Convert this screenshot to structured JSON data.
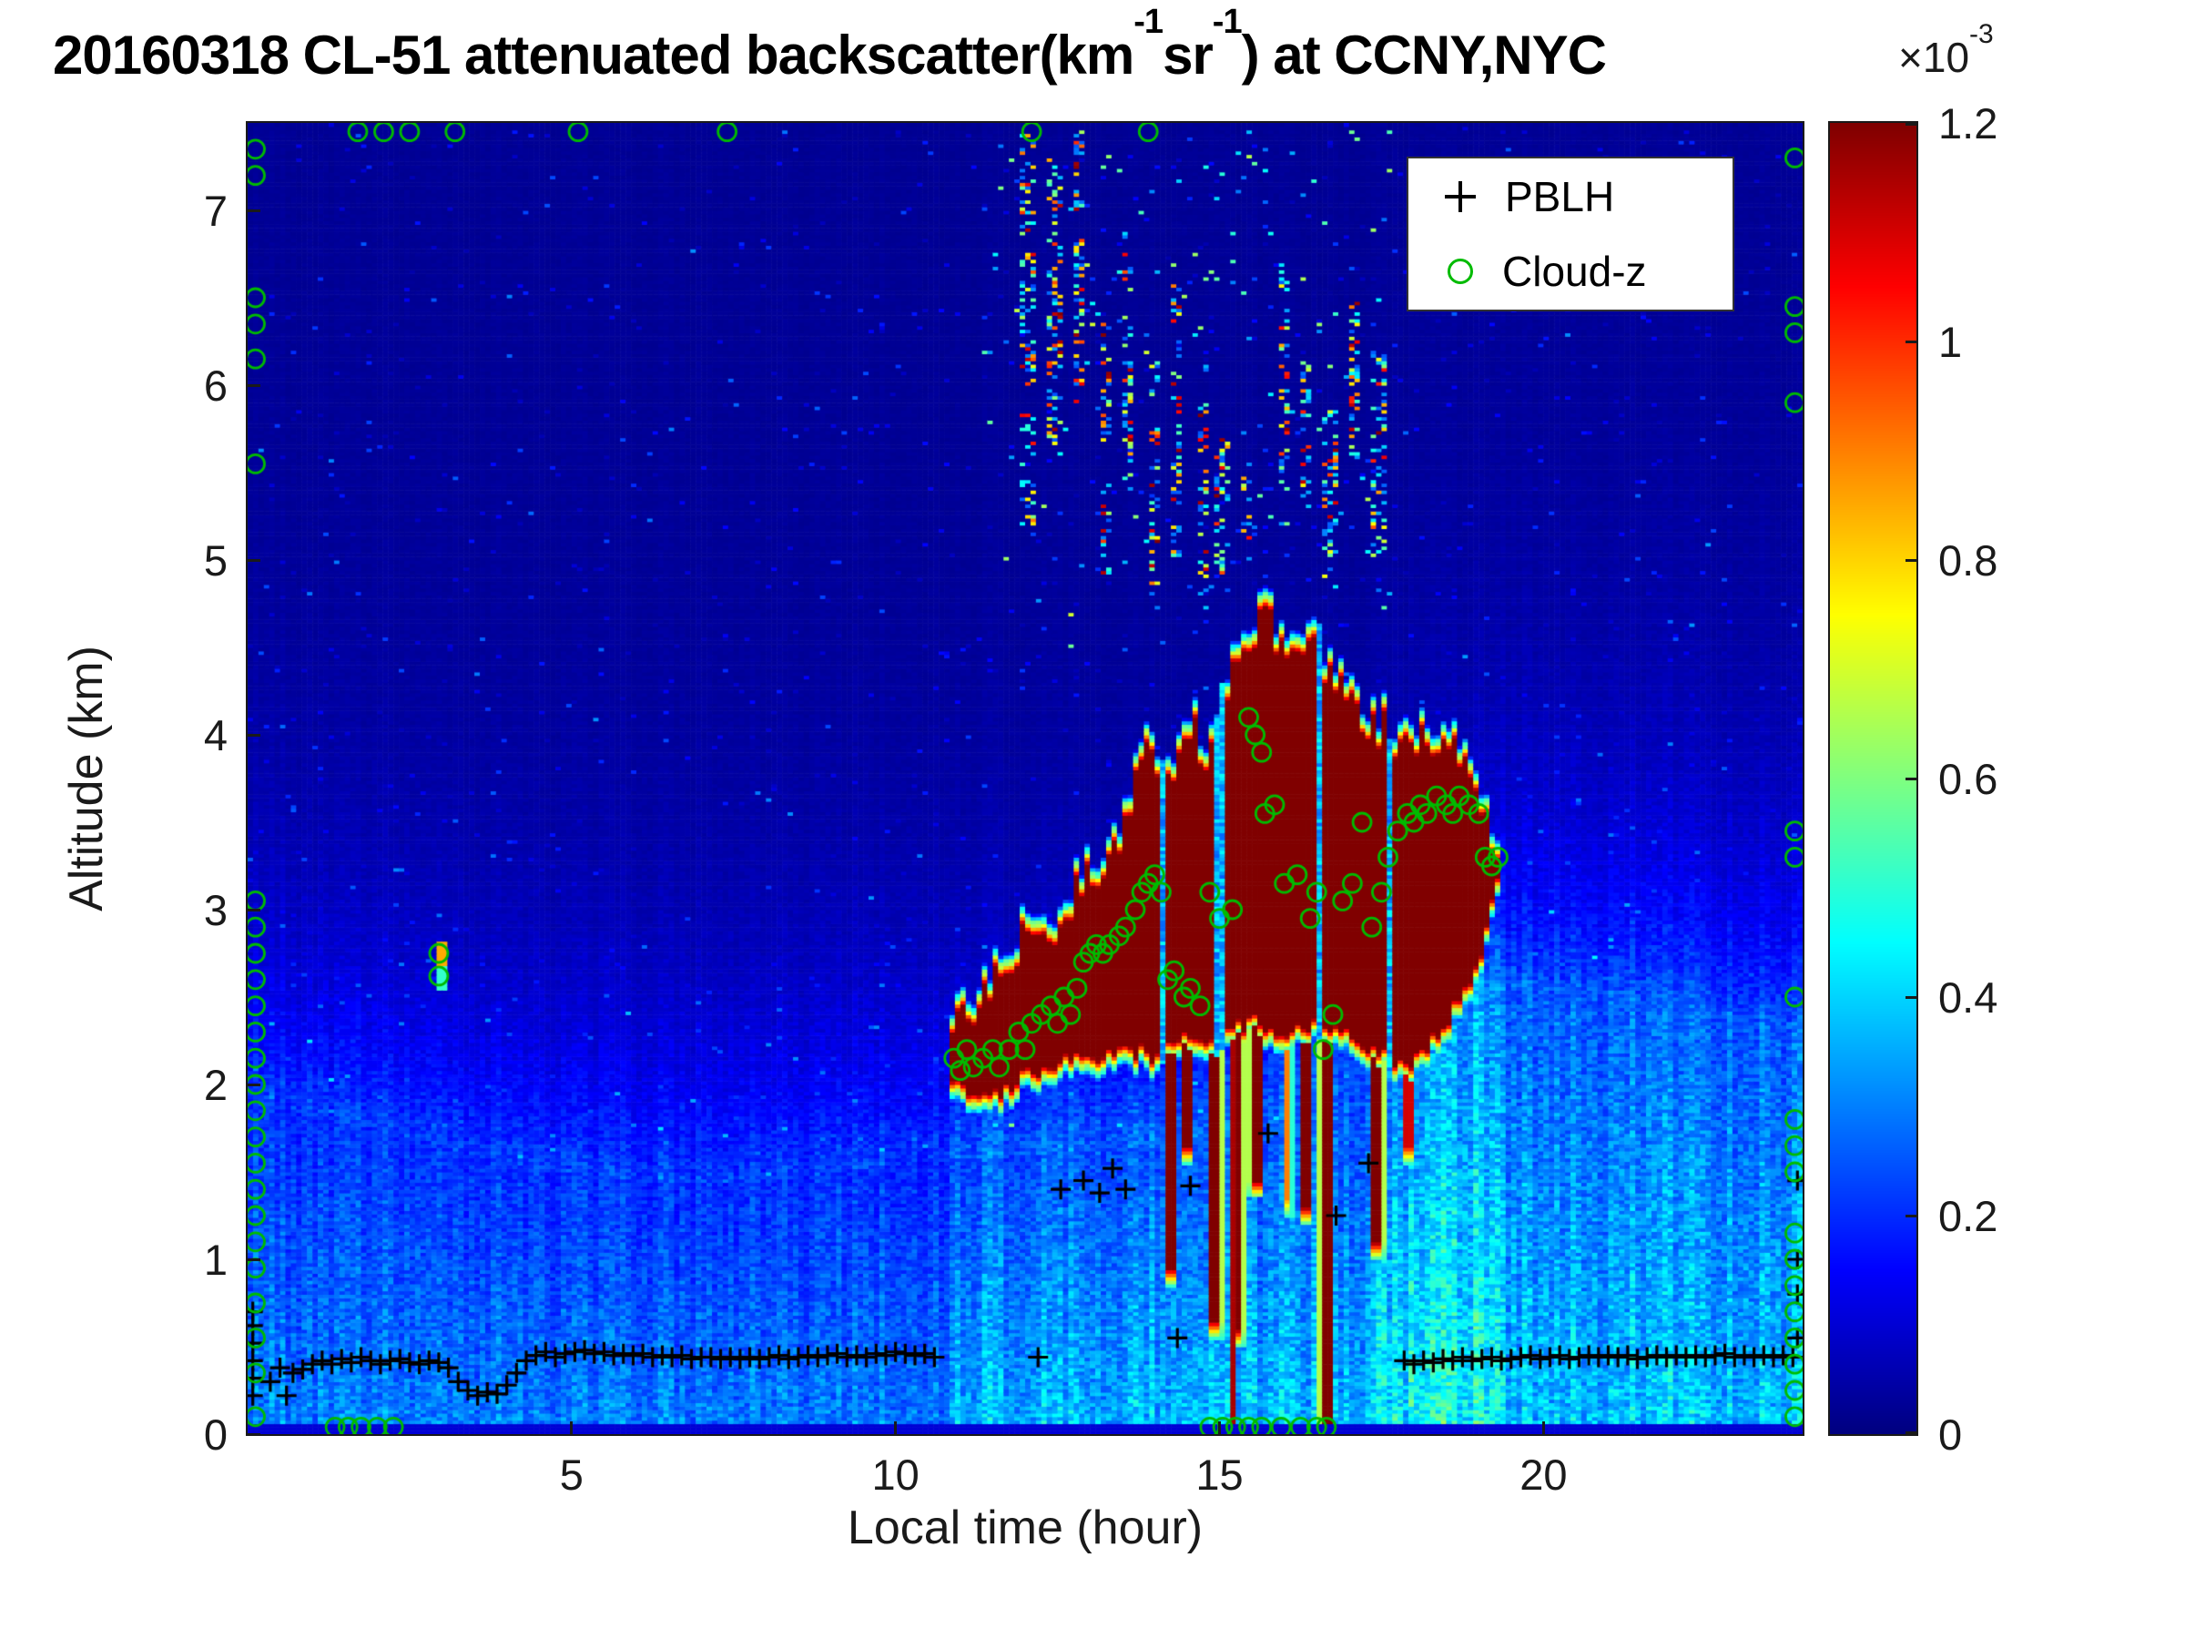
{
  "figure": {
    "background": "#ffffff"
  },
  "chart_data": {
    "type": "heatmap",
    "title_parts": {
      "prefix": "20160318  CL-51 attenuated backscatter(km",
      "sup1": "-1",
      "mid": "sr",
      "sup2": "-1",
      "suffix": ") at CCNY,NYC"
    },
    "xlabel": "Local time (hour)",
    "ylabel": "Altitude (km)",
    "xlim": [
      0,
      24
    ],
    "ylim": [
      0,
      7.5
    ],
    "xticks": [
      5,
      10,
      15,
      20
    ],
    "yticks": [
      0,
      1,
      2,
      3,
      4,
      5,
      6,
      7
    ],
    "colorbar": {
      "ticks": [
        0,
        0.2,
        0.4,
        0.6,
        0.8,
        1,
        1.2
      ],
      "vmin": 0,
      "vmax": 1.2,
      "multiplier_prefix": "×10",
      "multiplier_exp": "-3",
      "colormap": "jet"
    },
    "legend": [
      {
        "marker": "plus",
        "color": "#000000",
        "label": "PBLH"
      },
      {
        "marker": "circle",
        "color": "#00bb00",
        "label": "Cloud-z"
      }
    ],
    "heatmap_model": {
      "grid": {
        "nx": 288,
        "ny": 375
      },
      "boundary_layer": {
        "heights_by_hour": [
          [
            0,
            1.9
          ],
          [
            2,
            1.75
          ],
          [
            4,
            1.55
          ],
          [
            6,
            1.45
          ],
          [
            8,
            1.45
          ],
          [
            10,
            1.55
          ],
          [
            12,
            1.6
          ],
          [
            14,
            1.65
          ],
          [
            16,
            1.8
          ],
          [
            17,
            2.0
          ],
          [
            18,
            2.35
          ],
          [
            19,
            2.6
          ],
          [
            20,
            2.6
          ],
          [
            22,
            2.5
          ],
          [
            24,
            2.35
          ]
        ],
        "surface_value": 0.3,
        "top_value": 0.2,
        "decay_km": 0.9,
        "upper_floor": 0.025,
        "evening_boost": 1.3
      },
      "cloud": {
        "start": 10.85,
        "end": 19.35,
        "value": 1.2,
        "top_by_hour": [
          [
            10.85,
            2.35
          ],
          [
            11.2,
            2.5
          ],
          [
            11.6,
            2.65
          ],
          [
            12.0,
            2.9
          ],
          [
            12.4,
            2.85
          ],
          [
            12.8,
            3.15
          ],
          [
            13.2,
            3.35
          ],
          [
            13.6,
            3.6
          ],
          [
            13.9,
            4.05
          ],
          [
            14.2,
            3.75
          ],
          [
            14.5,
            4.15
          ],
          [
            14.8,
            3.95
          ],
          [
            15.1,
            4.35
          ],
          [
            15.5,
            4.65
          ],
          [
            15.8,
            4.7
          ],
          [
            16.1,
            4.45
          ],
          [
            16.5,
            4.55
          ],
          [
            16.9,
            4.35
          ],
          [
            17.3,
            4.15
          ],
          [
            17.7,
            4.05
          ],
          [
            18.2,
            4.0
          ],
          [
            18.6,
            3.95
          ],
          [
            19.0,
            3.75
          ],
          [
            19.35,
            3.3
          ]
        ],
        "base_by_hour": [
          [
            10.85,
            1.95
          ],
          [
            11.5,
            1.85
          ],
          [
            12.0,
            2.0
          ],
          [
            12.5,
            2.05
          ],
          [
            13.0,
            2.1
          ],
          [
            13.5,
            2.15
          ],
          [
            14.0,
            2.1
          ],
          [
            14.5,
            2.2
          ],
          [
            15.0,
            2.2
          ],
          [
            15.5,
            2.3
          ],
          [
            16.0,
            2.2
          ],
          [
            16.5,
            2.3
          ],
          [
            17.0,
            2.25
          ],
          [
            17.5,
            2.1
          ],
          [
            18.0,
            2.05
          ],
          [
            18.5,
            2.3
          ],
          [
            19.0,
            2.6
          ],
          [
            19.35,
            3.2
          ]
        ],
        "gaps": [
          {
            "hour": 14.12,
            "width": 0.04
          },
          {
            "hour": 15.0,
            "width": 0.05
          },
          {
            "hour": 16.52,
            "width": 0.04
          },
          {
            "hour": 17.62,
            "width": 0.05
          }
        ]
      },
      "precip_streaks": [
        {
          "hour": 14.25,
          "width": 0.1,
          "bottom": 0.85,
          "value": 1.2
        },
        {
          "hour": 14.5,
          "width": 0.12,
          "bottom": 1.55,
          "value": 1.2
        },
        {
          "hour": 14.95,
          "width": 0.1,
          "bottom": 0.55,
          "value": 1.2
        },
        {
          "hour": 15.2,
          "width": 0.07,
          "bottom": 0.05,
          "value": 1.15
        },
        {
          "hour": 15.3,
          "width": 0.08,
          "bottom": 0.5,
          "value": 1.2
        },
        {
          "hour": 15.55,
          "width": 0.1,
          "bottom": 1.35,
          "value": 1.2
        },
        {
          "hour": 16.05,
          "width": 0.08,
          "bottom": 1.25,
          "value": 0.9
        },
        {
          "hour": 16.35,
          "width": 0.09,
          "bottom": 1.2,
          "value": 1.2
        },
        {
          "hour": 16.65,
          "width": 0.14,
          "bottom": 0.0,
          "value": 1.2
        },
        {
          "hour": 17.45,
          "width": 0.1,
          "bottom": 1.0,
          "value": 1.2
        },
        {
          "hour": 17.9,
          "width": 0.08,
          "bottom": 1.55,
          "value": 1.1
        }
      ],
      "high_speckle_clusters": [
        [
          12.05,
          5.2,
          7.45
        ],
        [
          12.45,
          5.6,
          7.3
        ],
        [
          12.85,
          5.9,
          7.45
        ],
        [
          13.25,
          4.9,
          6.4
        ],
        [
          13.6,
          5.4,
          6.9
        ],
        [
          14.0,
          4.8,
          6.2
        ],
        [
          14.35,
          5.0,
          6.6
        ],
        [
          14.75,
          4.8,
          5.9
        ],
        [
          15.05,
          4.9,
          5.7
        ],
        [
          15.4,
          5.0,
          5.6
        ],
        [
          16.0,
          5.3,
          6.7
        ],
        [
          16.35,
          5.2,
          6.1
        ],
        [
          16.7,
          4.9,
          5.9
        ],
        [
          17.1,
          5.5,
          6.5
        ],
        [
          17.45,
          5.0,
          6.2
        ]
      ],
      "speckle_region": {
        "h0": 11.3,
        "h1": 17.7,
        "a0": 4.5,
        "a1": 7.45
      },
      "isolated_spot": {
        "hour": 3.0,
        "alt_lo": 2.55,
        "alt_hi": 2.82,
        "value": 0.85
      }
    },
    "pblh_points": [
      [
        0.08,
        0.22
      ],
      [
        0.08,
        0.32
      ],
      [
        0.08,
        0.42
      ],
      [
        0.08,
        0.52
      ],
      [
        0.08,
        0.62
      ],
      [
        0.08,
        0.7
      ],
      [
        0.35,
        0.3
      ],
      [
        0.5,
        0.38
      ],
      [
        0.6,
        0.22
      ],
      [
        0.7,
        0.35
      ],
      [
        0.85,
        0.37
      ],
      [
        1.0,
        0.4
      ],
      [
        1.15,
        0.42
      ],
      [
        1.3,
        0.4
      ],
      [
        1.45,
        0.43
      ],
      [
        1.6,
        0.41
      ],
      [
        1.75,
        0.44
      ],
      [
        1.9,
        0.42
      ],
      [
        2.05,
        0.4
      ],
      [
        2.2,
        0.42
      ],
      [
        2.35,
        0.43
      ],
      [
        2.5,
        0.41
      ],
      [
        2.65,
        0.4
      ],
      [
        2.8,
        0.42
      ],
      [
        2.95,
        0.41
      ],
      [
        3.1,
        0.38
      ],
      [
        3.25,
        0.3
      ],
      [
        3.4,
        0.25
      ],
      [
        3.55,
        0.22
      ],
      [
        3.7,
        0.24
      ],
      [
        3.85,
        0.23
      ],
      [
        4.0,
        0.28
      ],
      [
        4.15,
        0.35
      ],
      [
        4.3,
        0.42
      ],
      [
        4.45,
        0.45
      ],
      [
        4.6,
        0.47
      ],
      [
        4.75,
        0.44
      ],
      [
        4.9,
        0.46
      ],
      [
        5.05,
        0.47
      ],
      [
        5.2,
        0.48
      ],
      [
        5.35,
        0.46
      ],
      [
        5.5,
        0.47
      ],
      [
        5.65,
        0.45
      ],
      [
        5.8,
        0.46
      ],
      [
        5.95,
        0.45
      ],
      [
        6.1,
        0.46
      ],
      [
        6.25,
        0.44
      ],
      [
        6.4,
        0.45
      ],
      [
        6.55,
        0.44
      ],
      [
        6.7,
        0.45
      ],
      [
        6.85,
        0.43
      ],
      [
        7.0,
        0.44
      ],
      [
        7.15,
        0.44
      ],
      [
        7.3,
        0.43
      ],
      [
        7.45,
        0.44
      ],
      [
        7.6,
        0.43
      ],
      [
        7.75,
        0.44
      ],
      [
        7.9,
        0.43
      ],
      [
        8.05,
        0.44
      ],
      [
        8.2,
        0.45
      ],
      [
        8.35,
        0.43
      ],
      [
        8.5,
        0.44
      ],
      [
        8.65,
        0.45
      ],
      [
        8.8,
        0.44
      ],
      [
        8.95,
        0.45
      ],
      [
        9.1,
        0.46
      ],
      [
        9.25,
        0.44
      ],
      [
        9.4,
        0.45
      ],
      [
        9.55,
        0.44
      ],
      [
        9.7,
        0.46
      ],
      [
        9.85,
        0.45
      ],
      [
        10.0,
        0.47
      ],
      [
        10.15,
        0.46
      ],
      [
        10.3,
        0.45
      ],
      [
        10.45,
        0.46
      ],
      [
        10.6,
        0.44
      ],
      [
        12.2,
        0.44
      ],
      [
        12.55,
        1.4
      ],
      [
        12.9,
        1.45
      ],
      [
        13.15,
        1.38
      ],
      [
        13.35,
        1.52
      ],
      [
        13.55,
        1.4
      ],
      [
        14.35,
        0.55
      ],
      [
        14.55,
        1.42
      ],
      [
        15.75,
        1.72
      ],
      [
        16.8,
        1.25
      ],
      [
        17.3,
        1.55
      ],
      [
        17.85,
        0.42
      ],
      [
        18.0,
        0.4
      ],
      [
        18.15,
        0.42
      ],
      [
        18.3,
        0.41
      ],
      [
        18.45,
        0.43
      ],
      [
        18.6,
        0.42
      ],
      [
        18.75,
        0.44
      ],
      [
        18.9,
        0.42
      ],
      [
        19.05,
        0.43
      ],
      [
        19.2,
        0.44
      ],
      [
        19.35,
        0.42
      ],
      [
        19.5,
        0.43
      ],
      [
        19.65,
        0.44
      ],
      [
        19.8,
        0.45
      ],
      [
        19.95,
        0.43
      ],
      [
        20.1,
        0.44
      ],
      [
        20.25,
        0.45
      ],
      [
        20.4,
        0.43
      ],
      [
        20.55,
        0.44
      ],
      [
        20.7,
        0.45
      ],
      [
        20.85,
        0.44
      ],
      [
        21.0,
        0.45
      ],
      [
        21.15,
        0.44
      ],
      [
        21.3,
        0.45
      ],
      [
        21.45,
        0.43
      ],
      [
        21.6,
        0.44
      ],
      [
        21.75,
        0.45
      ],
      [
        21.9,
        0.44
      ],
      [
        22.05,
        0.45
      ],
      [
        22.2,
        0.44
      ],
      [
        22.35,
        0.45
      ],
      [
        22.5,
        0.44
      ],
      [
        22.65,
        0.45
      ],
      [
        22.8,
        0.46
      ],
      [
        22.95,
        0.44
      ],
      [
        23.1,
        0.45
      ],
      [
        23.25,
        0.44
      ],
      [
        23.4,
        0.45
      ],
      [
        23.55,
        0.44
      ],
      [
        23.7,
        0.45
      ],
      [
        23.85,
        0.44
      ],
      [
        23.92,
        0.55
      ],
      [
        23.92,
        0.8
      ],
      [
        23.92,
        1.0
      ],
      [
        23.92,
        1.45
      ]
    ],
    "cloudz_points": [
      [
        0.12,
        0.1
      ],
      [
        0.12,
        0.35
      ],
      [
        0.12,
        0.55
      ],
      [
        0.12,
        0.75
      ],
      [
        0.12,
        0.95
      ],
      [
        0.12,
        1.1
      ],
      [
        0.12,
        1.25
      ],
      [
        0.12,
        1.4
      ],
      [
        0.12,
        1.55
      ],
      [
        0.12,
        1.7
      ],
      [
        0.12,
        1.85
      ],
      [
        0.12,
        2.0
      ],
      [
        0.12,
        2.15
      ],
      [
        0.12,
        2.3
      ],
      [
        0.12,
        2.45
      ],
      [
        0.12,
        2.6
      ],
      [
        0.12,
        2.75
      ],
      [
        0.12,
        2.9
      ],
      [
        0.12,
        3.05
      ],
      [
        0.12,
        5.55
      ],
      [
        0.12,
        6.15
      ],
      [
        0.12,
        6.35
      ],
      [
        0.12,
        6.5
      ],
      [
        0.12,
        7.2
      ],
      [
        0.12,
        7.35
      ],
      [
        1.35,
        0.04
      ],
      [
        1.55,
        0.04
      ],
      [
        1.75,
        0.04
      ],
      [
        2.0,
        0.04
      ],
      [
        2.25,
        0.04
      ],
      [
        1.7,
        7.45
      ],
      [
        2.1,
        7.45
      ],
      [
        2.5,
        7.45
      ],
      [
        3.2,
        7.45
      ],
      [
        5.1,
        7.45
      ],
      [
        7.4,
        7.45
      ],
      [
        12.1,
        7.45
      ],
      [
        13.9,
        7.45
      ],
      [
        2.95,
        2.75
      ],
      [
        2.95,
        2.62
      ],
      [
        10.9,
        2.15
      ],
      [
        11.0,
        2.08
      ],
      [
        11.1,
        2.2
      ],
      [
        11.2,
        2.1
      ],
      [
        11.35,
        2.15
      ],
      [
        11.5,
        2.2
      ],
      [
        11.6,
        2.1
      ],
      [
        11.75,
        2.2
      ],
      [
        11.9,
        2.3
      ],
      [
        12.0,
        2.2
      ],
      [
        12.1,
        2.35
      ],
      [
        12.25,
        2.4
      ],
      [
        12.4,
        2.45
      ],
      [
        12.5,
        2.35
      ],
      [
        12.6,
        2.5
      ],
      [
        12.7,
        2.4
      ],
      [
        12.8,
        2.55
      ],
      [
        12.9,
        2.7
      ],
      [
        13.0,
        2.75
      ],
      [
        13.1,
        2.8
      ],
      [
        13.2,
        2.75
      ],
      [
        13.3,
        2.8
      ],
      [
        13.45,
        2.85
      ],
      [
        13.55,
        2.9
      ],
      [
        13.7,
        3.0
      ],
      [
        13.8,
        3.1
      ],
      [
        13.9,
        3.15
      ],
      [
        14.0,
        3.2
      ],
      [
        14.1,
        3.1
      ],
      [
        14.2,
        2.6
      ],
      [
        14.3,
        2.65
      ],
      [
        14.45,
        2.5
      ],
      [
        14.55,
        2.55
      ],
      [
        14.7,
        2.45
      ],
      [
        14.85,
        3.1
      ],
      [
        15.0,
        2.95
      ],
      [
        15.2,
        3.0
      ],
      [
        15.45,
        4.1
      ],
      [
        15.55,
        4.0
      ],
      [
        15.65,
        3.9
      ],
      [
        15.7,
        3.55
      ],
      [
        15.85,
        3.6
      ],
      [
        16.0,
        3.15
      ],
      [
        16.2,
        3.2
      ],
      [
        16.4,
        2.95
      ],
      [
        16.5,
        3.1
      ],
      [
        16.6,
        2.2
      ],
      [
        16.75,
        2.4
      ],
      [
        16.9,
        3.05
      ],
      [
        17.05,
        3.15
      ],
      [
        17.2,
        3.5
      ],
      [
        17.35,
        2.9
      ],
      [
        17.5,
        3.1
      ],
      [
        17.6,
        3.3
      ],
      [
        17.75,
        3.45
      ],
      [
        17.9,
        3.55
      ],
      [
        18.0,
        3.5
      ],
      [
        18.1,
        3.6
      ],
      [
        18.2,
        3.55
      ],
      [
        18.35,
        3.65
      ],
      [
        18.5,
        3.6
      ],
      [
        18.6,
        3.55
      ],
      [
        18.7,
        3.65
      ],
      [
        18.85,
        3.6
      ],
      [
        19.0,
        3.55
      ],
      [
        19.1,
        3.3
      ],
      [
        19.2,
        3.25
      ],
      [
        19.3,
        3.3
      ],
      [
        14.85,
        0.04
      ],
      [
        15.05,
        0.04
      ],
      [
        15.25,
        0.04
      ],
      [
        15.45,
        0.04
      ],
      [
        15.65,
        0.04
      ],
      [
        15.95,
        0.04
      ],
      [
        16.25,
        0.04
      ],
      [
        16.5,
        0.04
      ],
      [
        16.65,
        0.04
      ],
      [
        23.88,
        0.1
      ],
      [
        23.88,
        0.25
      ],
      [
        23.88,
        0.4
      ],
      [
        23.88,
        0.55
      ],
      [
        23.88,
        0.7
      ],
      [
        23.88,
        0.85
      ],
      [
        23.88,
        1.0
      ],
      [
        23.88,
        1.15
      ],
      [
        23.88,
        1.5
      ],
      [
        23.88,
        1.65
      ],
      [
        23.88,
        1.8
      ],
      [
        23.88,
        2.5
      ],
      [
        23.88,
        3.3
      ],
      [
        23.88,
        3.45
      ],
      [
        23.88,
        5.9
      ],
      [
        23.88,
        6.3
      ],
      [
        23.88,
        6.45
      ],
      [
        23.88,
        7.3
      ]
    ]
  }
}
